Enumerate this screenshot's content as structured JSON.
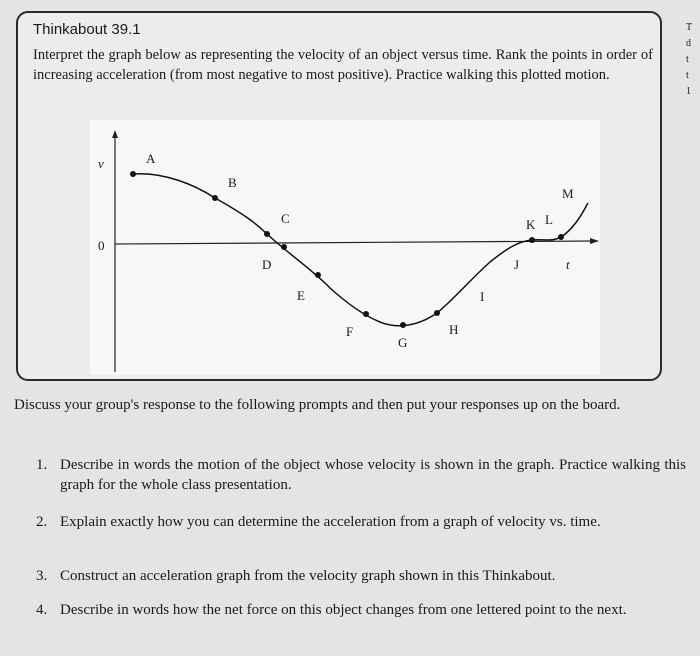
{
  "thinkabout": {
    "title": "Thinkabout 39.1",
    "text": "Interpret the graph below as representing the velocity of an object versus time. Rank the points in order of increasing acceleration (from most negative to most positive). Practice walking this plotted motion.",
    "graph": {
      "y_label": "v",
      "zero": "0",
      "x_label": "t",
      "points": [
        "A",
        "B",
        "C",
        "D",
        "E",
        "F",
        "G",
        "H",
        "I",
        "J",
        "K",
        "L",
        "M"
      ]
    }
  },
  "edge_fragments": [
    "T",
    "d",
    "t",
    "t",
    "1"
  ],
  "intro": "Discuss your group's response to the following prompts and then put your responses up on the board.",
  "prompts": [
    {
      "number": "1.",
      "text": "Describe in words the motion of the object whose velocity is shown in the graph. Practice walking this graph for the whole class presentation."
    },
    {
      "number": "2.",
      "text": "Explain exactly how you can determine the acceleration from a graph of velocity vs. time."
    },
    {
      "number": "3.",
      "text": "Construct an acceleration graph from the velocity graph shown in this Thinkabout."
    },
    {
      "number": "4.",
      "text": "Describe in words how the net force on this object changes from one lettered point to the next."
    }
  ]
}
